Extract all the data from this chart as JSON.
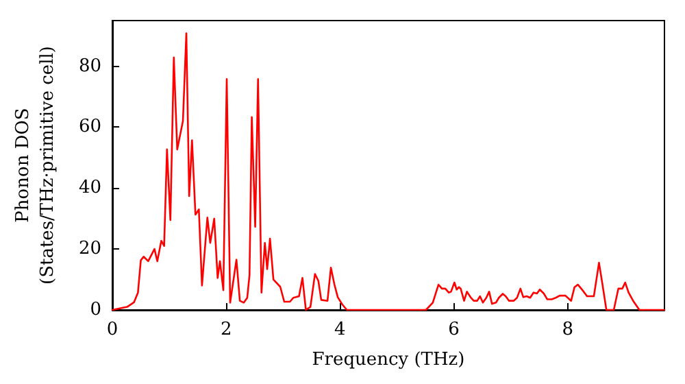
{
  "chart_data": {
    "type": "line",
    "xlabel": "Frequency (THz)",
    "ylabel": "Phonon DOS\n(States/THz·primitive cell)",
    "x": [
      0,
      0.26,
      0.38,
      0.45,
      0.5,
      0.55,
      0.63,
      0.74,
      0.79,
      0.86,
      0.91,
      0.96,
      1.02,
      1.08,
      1.14,
      1.24,
      1.3,
      1.35,
      1.4,
      1.46,
      1.52,
      1.575,
      1.67,
      1.72,
      1.79,
      1.85,
      1.89,
      1.95,
      2.01,
      2.07,
      2.18,
      2.24,
      2.31,
      2.37,
      2.41,
      2.45,
      2.51,
      2.56,
      2.62,
      2.68,
      2.72,
      2.77,
      2.83,
      2.95,
      3.02,
      3.12,
      3.18,
      3.28,
      3.34,
      3.4,
      3.48,
      3.56,
      3.62,
      3.67,
      3.78,
      3.84,
      3.9,
      3.96,
      4.04,
      4.12,
      5.51,
      5.63,
      5.73,
      5.79,
      5.85,
      5.91,
      5.95,
      6.01,
      6.05,
      6.09,
      6.12,
      6.18,
      6.23,
      6.3,
      6.35,
      6.41,
      6.46,
      6.51,
      6.57,
      6.62,
      6.67,
      6.74,
      6.79,
      6.86,
      6.91,
      6.97,
      7.05,
      7.11,
      7.17,
      7.22,
      7.28,
      7.34,
      7.4,
      7.46,
      7.51,
      7.58,
      7.64,
      7.72,
      7.79,
      7.86,
      7.96,
      8.06,
      8.12,
      8.18,
      8.26,
      8.34,
      8.46,
      8.55,
      8.61,
      8.68,
      8.81,
      8.89,
      8.96,
      9.01,
      9.07,
      9.15,
      9.26,
      9.7
    ],
    "series": [
      {
        "color": "#ff0000",
        "values": [
          0,
          1,
          2.5,
          5.7,
          16.3,
          17.5,
          16,
          20,
          16,
          22.7,
          21,
          52.7,
          29.5,
          82.9,
          52.7,
          62,
          90.8,
          37.4,
          55.7,
          31.3,
          33,
          8,
          30.3,
          22,
          30,
          10.5,
          16,
          6.5,
          75.8,
          2.4,
          16.5,
          3,
          2.4,
          4,
          11.5,
          63.3,
          27.3,
          75.8,
          5.7,
          22,
          13.4,
          23.4,
          10,
          7.6,
          2.7,
          2.7,
          4,
          4.5,
          10.5,
          0,
          1,
          11.8,
          9.5,
          3.3,
          3,
          13.9,
          8.5,
          4.2,
          1.8,
          0,
          0,
          2.4,
          8.3,
          7,
          7,
          5.7,
          6,
          9,
          6.7,
          7.5,
          7,
          3,
          6,
          4,
          3,
          3,
          4.5,
          2.4,
          4,
          6,
          2,
          2.4,
          4,
          5.3,
          4.5,
          3,
          3,
          4,
          7,
          4.2,
          4.5,
          4,
          5.7,
          5.4,
          6.7,
          5.4,
          3.5,
          3.5,
          4,
          4.7,
          4.7,
          3,
          7.5,
          8.3,
          6.5,
          4.5,
          4.5,
          15.5,
          8.5,
          0,
          0,
          7,
          7,
          9,
          5.7,
          3,
          0,
          0
        ]
      }
    ],
    "xlim": [
      0,
      9.7
    ],
    "xticks": [
      0,
      2,
      4,
      6,
      8
    ],
    "ylim": [
      0,
      95
    ],
    "yticks": [
      0,
      20,
      40,
      60,
      80
    ],
    "grid": false,
    "marker": "none",
    "line_style": "solid"
  }
}
